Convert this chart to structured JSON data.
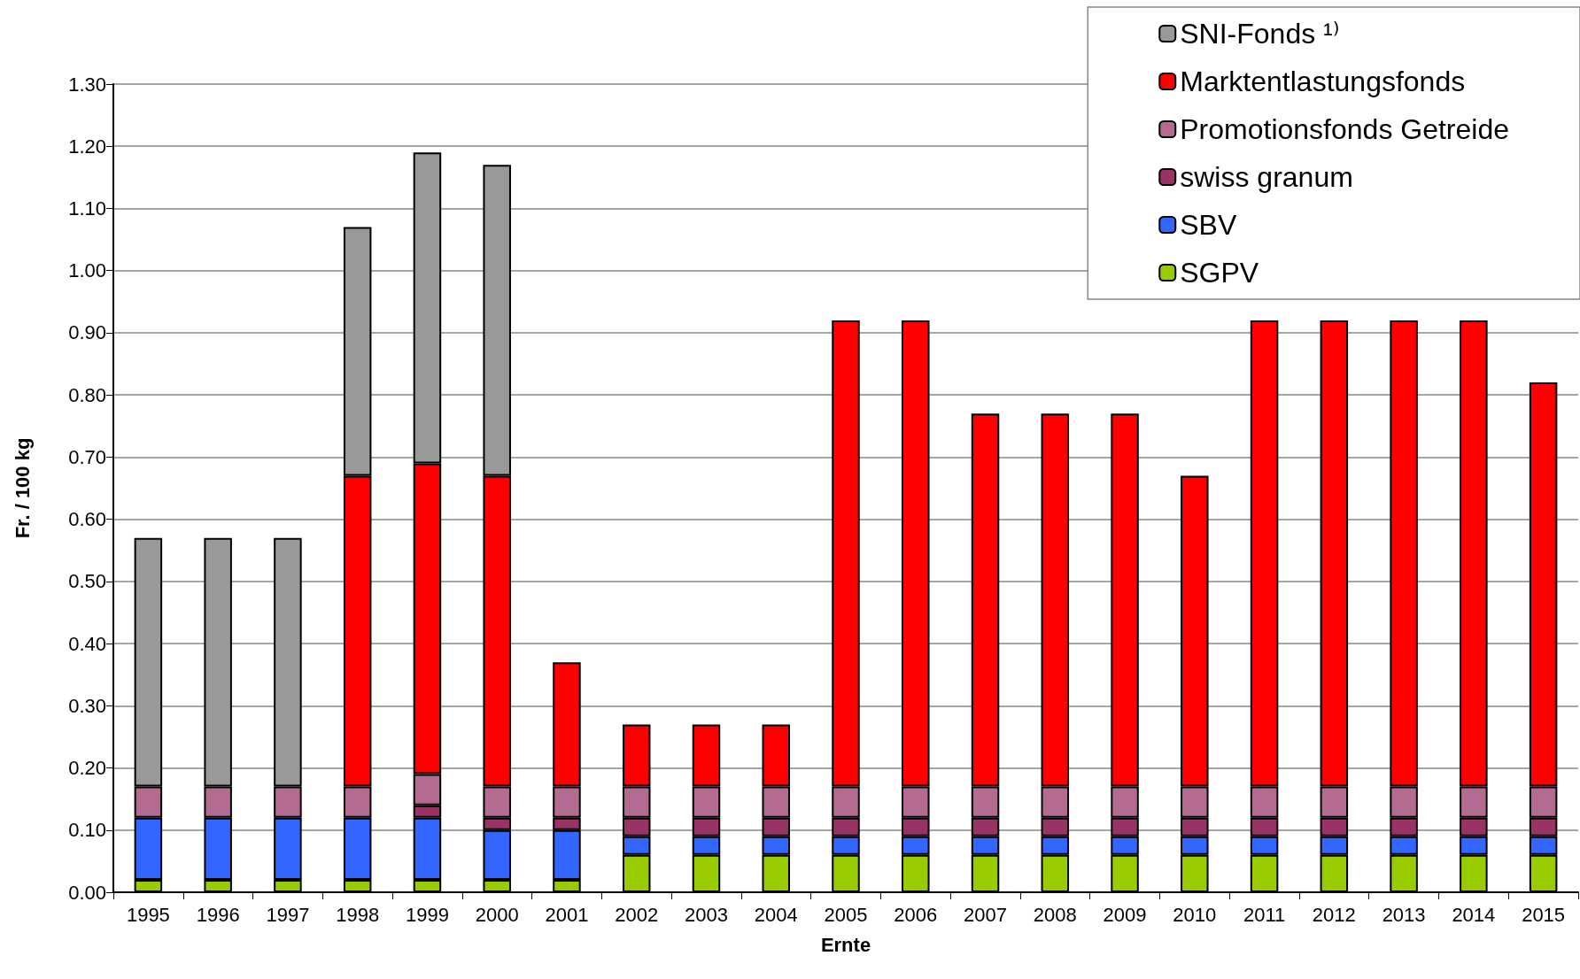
{
  "chart_data": {
    "type": "bar",
    "stacked": true,
    "xlabel": "Ernte",
    "ylabel": "Fr. / 100 kg",
    "categories": [
      "1995",
      "1996",
      "1997",
      "1998",
      "1999",
      "2000",
      "2001",
      "2002",
      "2003",
      "2004",
      "2005",
      "2006",
      "2007",
      "2008",
      "2009",
      "2010",
      "2011",
      "2012",
      "2013",
      "2014",
      "2015"
    ],
    "series": [
      {
        "name": "SGPV",
        "color": "#99cc00",
        "values": [
          0.02,
          0.02,
          0.02,
          0.02,
          0.02,
          0.02,
          0.02,
          0.06,
          0.06,
          0.06,
          0.06,
          0.06,
          0.06,
          0.06,
          0.06,
          0.06,
          0.06,
          0.06,
          0.06,
          0.06,
          0.06
        ]
      },
      {
        "name": "SBV",
        "color": "#3366ff",
        "values": [
          0.1,
          0.1,
          0.1,
          0.1,
          0.1,
          0.08,
          0.08,
          0.03,
          0.03,
          0.03,
          0.03,
          0.03,
          0.03,
          0.03,
          0.03,
          0.03,
          0.03,
          0.03,
          0.03,
          0.03,
          0.03
        ]
      },
      {
        "name": "swiss granum",
        "color": "#993366",
        "values": [
          null,
          null,
          null,
          null,
          0.02,
          0.02,
          0.02,
          0.03,
          0.03,
          0.03,
          0.03,
          0.03,
          0.03,
          0.03,
          0.03,
          0.03,
          0.03,
          0.03,
          0.03,
          0.03,
          0.03
        ]
      },
      {
        "name": "Promotionsfonds Getreide",
        "color": "#b36b91",
        "values": [
          0.05,
          0.05,
          0.05,
          0.05,
          0.05,
          0.05,
          0.05,
          0.05,
          0.05,
          0.05,
          0.05,
          0.05,
          0.05,
          0.05,
          0.05,
          0.05,
          0.05,
          0.05,
          0.05,
          0.05,
          0.05
        ]
      },
      {
        "name": "Marktentlastungsfonds",
        "color": "#ff0000",
        "values": [
          null,
          null,
          null,
          0.5,
          0.5,
          0.5,
          0.2,
          0.1,
          0.1,
          0.1,
          0.75,
          0.75,
          0.6,
          0.6,
          0.6,
          0.5,
          0.75,
          0.75,
          0.75,
          0.75,
          0.65
        ]
      },
      {
        "name": "SNI-Fonds ¹⁾",
        "color": "#999999",
        "values": [
          0.4,
          0.4,
          0.4,
          0.4,
          0.5,
          0.5,
          null,
          null,
          null,
          null,
          null,
          null,
          null,
          null,
          null,
          null,
          null,
          null,
          null,
          null,
          null
        ]
      }
    ],
    "ylim": [
      0,
      1.3
    ],
    "yticks": [
      {
        "value": 0,
        "label": "0.00"
      },
      {
        "value": 0.1,
        "label": "0.10"
      },
      {
        "value": 0.2,
        "label": "0.20"
      },
      {
        "value": 0.3,
        "label": "0.30"
      },
      {
        "value": 0.4,
        "label": "0.40"
      },
      {
        "value": 0.5,
        "label": "0.50"
      },
      {
        "value": 0.6,
        "label": "0.60"
      },
      {
        "value": 0.7,
        "label": "0.70"
      },
      {
        "value": 0.8,
        "label": "0.80"
      },
      {
        "value": 0.9,
        "label": "0.90"
      },
      {
        "value": 1.0,
        "label": "1.00"
      },
      {
        "value": 1.1,
        "label": "1.10"
      },
      {
        "value": 1.2,
        "label": "1.20"
      },
      {
        "value": 1.3,
        "label": "1.30"
      }
    ],
    "grid": "y",
    "legend": "top right"
  }
}
